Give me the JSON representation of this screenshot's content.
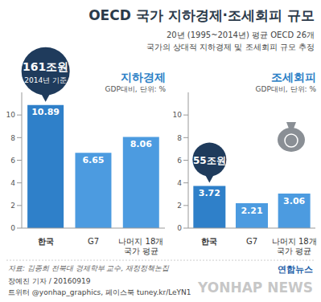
{
  "title": "OECD 국가 지하경제·조세회피 규모",
  "subtitle": [
    "20년 (1995~2014년) 평균 OECD 26개",
    "국가의 상대적 지하경제 및 조세회피 규모 추정"
  ],
  "chart_data": [
    {
      "type": "bar",
      "title": "지하경제",
      "subtitle": "GDP대비, 단위: %",
      "categories": [
        "한국",
        "G7",
        "나머지 18개 국가 평균"
      ],
      "values": [
        10.89,
        6.65,
        8.06
      ],
      "colors": [
        "#2f80c9",
        "#4c9be0",
        "#4c9be0"
      ],
      "ylim": [
        0,
        12
      ],
      "yticks": [
        0,
        2,
        4,
        6,
        8,
        10
      ],
      "grid": false,
      "data_labels": true,
      "annotations": [
        "161조원",
        "2014년 기준"
      ]
    },
    {
      "type": "bar",
      "title": "조세회피",
      "subtitle": "GDP대비, 단위: %",
      "categories": [
        "한국",
        "G7",
        "나머지 18개 국가 평균"
      ],
      "values": [
        3.72,
        2.21,
        3.06
      ],
      "colors": [
        "#2f80c9",
        "#4c9be0",
        "#4c9be0"
      ],
      "ylim": [
        0,
        12
      ],
      "yticks": [
        0,
        2,
        4,
        6,
        8,
        10
      ],
      "grid": false,
      "data_labels": true,
      "annotations": [
        "55조원"
      ]
    }
  ],
  "source": "자료: 김종희 전북대 경제학부 교수, 재정정책논집",
  "byline": "장예진 기자 / 20160919",
  "social": "트위터 @yonhap_graphics, 페이스북 tuney.kr/LeYN1",
  "logo": "연합뉴스",
  "watermark": "YONHAP NEWS"
}
